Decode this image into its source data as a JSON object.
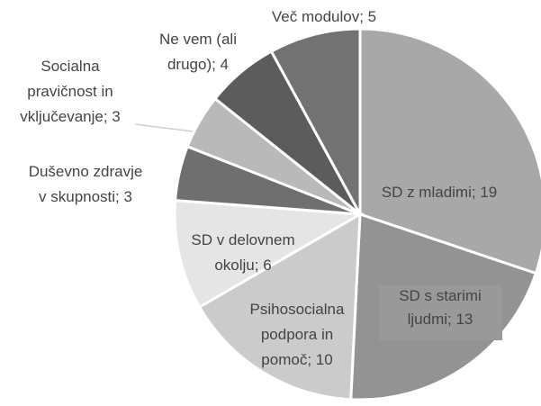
{
  "chart_data": {
    "type": "pie",
    "values": [
      19,
      13,
      10,
      6,
      3,
      3,
      4,
      5
    ],
    "value_labels": [
      "SD z mladimi; 19",
      "SD s starimi\nljudmi; 13",
      "Psihosocialna\npodpora in\npomoč; 10",
      "SD v delovnem\nokolju; 6",
      "Duševno zdravje\nv skupnosti; 3",
      "Socialna\npravičnost in\nvključevanje; 3",
      "Ne vem (ali\ndrugo); 4",
      "Več modulov; 5"
    ],
    "colors": [
      "#a8a8a8",
      "#939393",
      "#cbcbcb",
      "#e5e5e5",
      "#6f6f6f",
      "#b9b9b9",
      "#5c5c5c",
      "#727272"
    ]
  }
}
